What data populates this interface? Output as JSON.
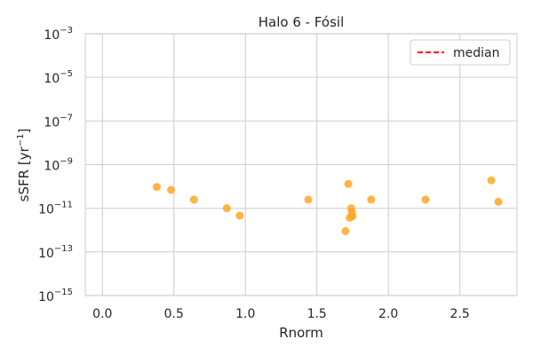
{
  "chart_data": {
    "type": "scatter",
    "title": "Halo 6 - Fósil",
    "xlabel": "Rnorm",
    "ylabel_base": "sSFR [yr",
    "ylabel_exp": "−1",
    "ylabel_close": "]",
    "xlim": [
      -0.12,
      2.9
    ],
    "ylim": [
      1e-15,
      0.001
    ],
    "yscale": "log",
    "grid": true,
    "x_ticks": [
      {
        "value": 0.0,
        "label": "0.0"
      },
      {
        "value": 0.5,
        "label": "0.5"
      },
      {
        "value": 1.0,
        "label": "1.0"
      },
      {
        "value": 1.5,
        "label": "1.5"
      },
      {
        "value": 2.0,
        "label": "2.0"
      },
      {
        "value": 2.5,
        "label": "2.5"
      }
    ],
    "y_ticks": [
      {
        "value": 0.001,
        "base": "10",
        "exp": "−3"
      },
      {
        "value": 1e-05,
        "base": "10",
        "exp": "−5"
      },
      {
        "value": 1e-07,
        "base": "10",
        "exp": "−7"
      },
      {
        "value": 1e-09,
        "base": "10",
        "exp": "−9"
      },
      {
        "value": 1e-11,
        "base": "10",
        "exp": "−11"
      },
      {
        "value": 1e-13,
        "base": "10",
        "exp": "−13"
      },
      {
        "value": 1e-15,
        "base": "10",
        "exp": "−15"
      }
    ],
    "points": [
      {
        "x": 0.38,
        "y": 9.5e-11
      },
      {
        "x": 0.48,
        "y": 7e-11
      },
      {
        "x": 0.64,
        "y": 2.5e-11
      },
      {
        "x": 0.87,
        "y": 1e-11
      },
      {
        "x": 0.96,
        "y": 4.6e-12
      },
      {
        "x": 1.44,
        "y": 2.5e-11
      },
      {
        "x": 1.7,
        "y": 9e-13
      },
      {
        "x": 1.72,
        "y": 1.3e-10
      },
      {
        "x": 1.73,
        "y": 3.7e-12
      },
      {
        "x": 1.74,
        "y": 1e-11
      },
      {
        "x": 1.745,
        "y": 6.5e-12
      },
      {
        "x": 1.75,
        "y": 4.3e-12
      },
      {
        "x": 1.88,
        "y": 2.5e-11
      },
      {
        "x": 2.26,
        "y": 2.5e-11
      },
      {
        "x": 2.72,
        "y": 1.9e-10
      },
      {
        "x": 2.77,
        "y": 2e-11
      }
    ],
    "point_color": "#ffa726",
    "legend": {
      "position": "top-right",
      "entries": [
        {
          "label": "median",
          "color": "#ff0000",
          "style": "dashed"
        }
      ]
    }
  }
}
